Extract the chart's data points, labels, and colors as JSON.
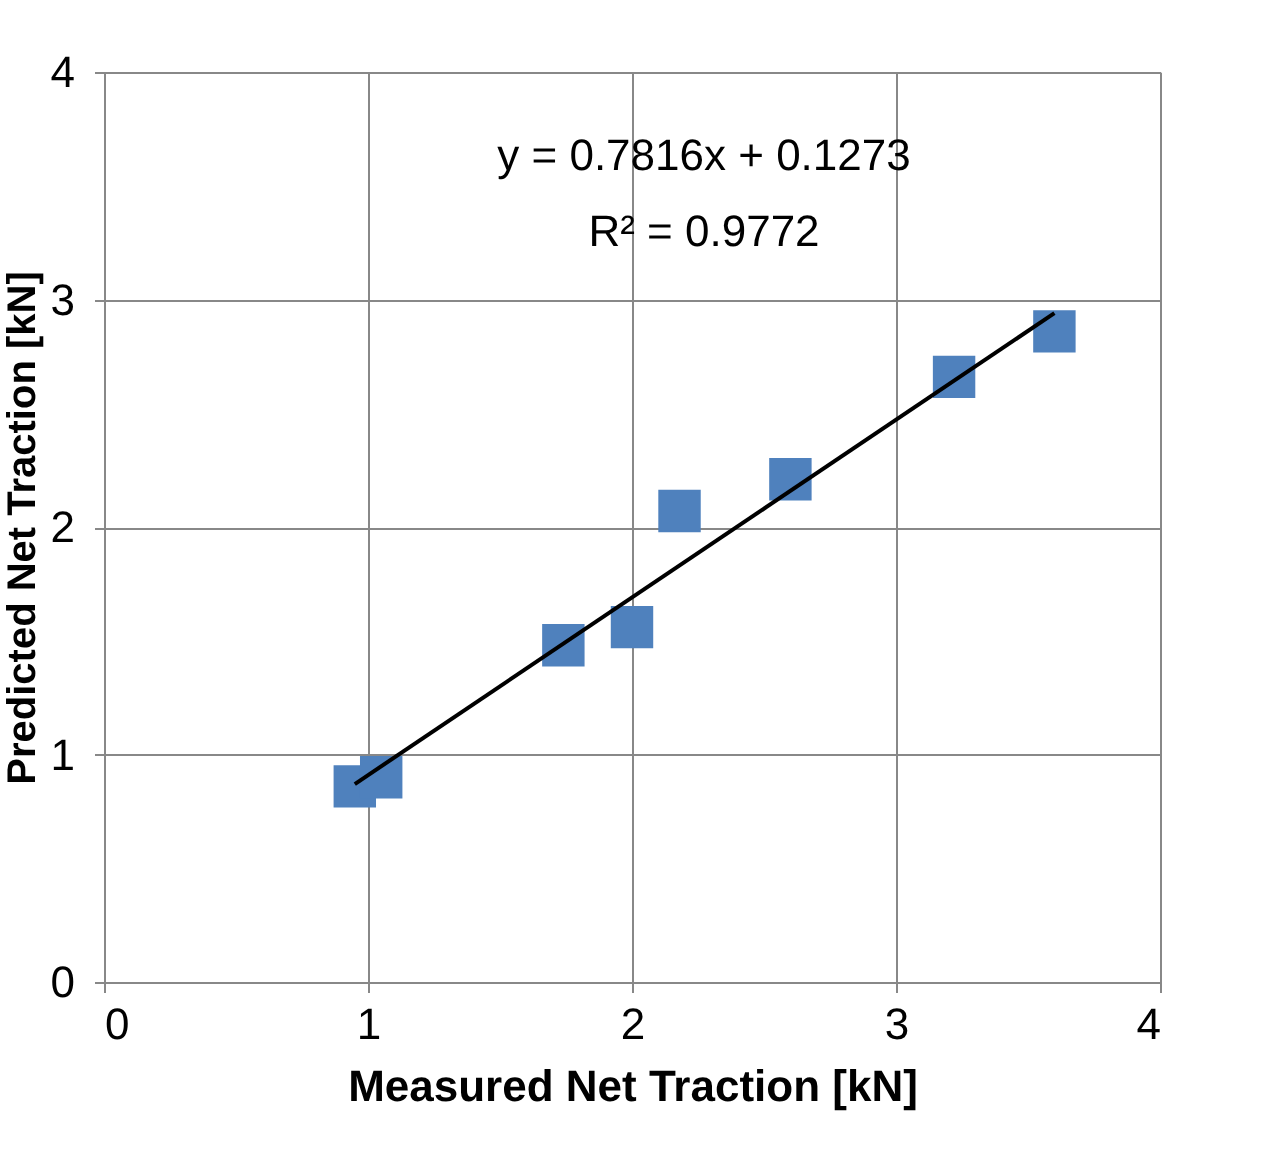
{
  "chart_data": {
    "type": "scatter",
    "xlabel": "Measured Net Traction [kN]",
    "ylabel": "Predicted Net Traction [kN]",
    "xlim": [
      0,
      4
    ],
    "ylim": [
      0,
      4
    ],
    "xticks": [
      0,
      1,
      2,
      3,
      4
    ],
    "yticks": [
      0,
      1,
      2,
      3,
      4
    ],
    "grid": true,
    "marker": "square",
    "annotations": [
      "y = 0.7816x + 0.1273",
      "R² = 0.9772"
    ],
    "series": [
      {
        "color": "#4f81bd",
        "x": [
          0.95,
          1.05,
          1.74,
          2.0,
          2.18,
          2.6,
          3.22,
          3.6
        ],
        "values": [
          0.86,
          0.9,
          1.48,
          1.56,
          2.07,
          2.21,
          2.66,
          2.86
        ]
      },
      {
        "type": "line",
        "color": "#000000",
        "line_style": "solid",
        "marker": "none",
        "x": [
          0.95,
          3.6
        ],
        "values": [
          0.87,
          2.94
        ]
      }
    ]
  }
}
